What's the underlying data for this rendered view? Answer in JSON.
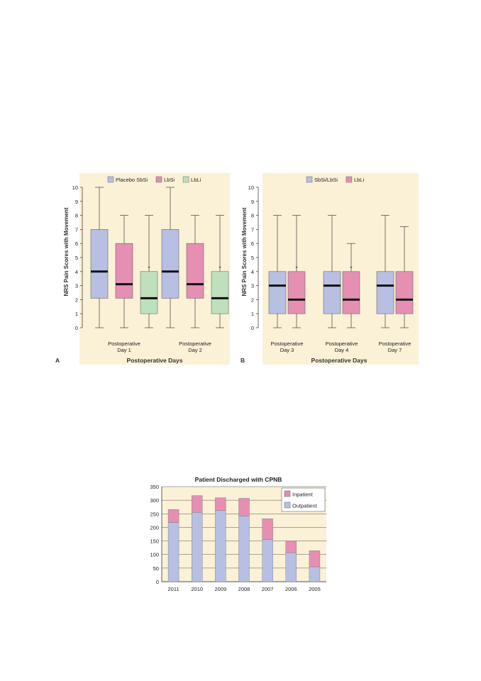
{
  "colors": {
    "panel_bg": "#fbf1d6",
    "placebo": "#b7bfe3",
    "lbsi": "#e58fb2",
    "lbli": "#bfe0bd",
    "outpatient": "#b7bfe3",
    "inpatient": "#e58fb2",
    "axis": "#444444",
    "whisker": "#555555",
    "median": "#111111"
  },
  "chart_data": [
    {
      "type": "box",
      "panel_letter": "A",
      "ylabel": "NRS Pain Scores with Movement",
      "xlabel": "Postoperative Days",
      "ylim": [
        0,
        10
      ],
      "yticks": [
        "0",
        "1",
        "2",
        "3",
        "4",
        "5",
        "6",
        "7",
        "8",
        "9",
        "10"
      ],
      "legend": [
        {
          "name": "Placebo SbSi",
          "color": "#b7bfe3"
        },
        {
          "name": "LbSi",
          "color": "#e58fb2"
        },
        {
          "name": "LbLi",
          "color": "#bfe0bd"
        }
      ],
      "legend_position": "top-center",
      "groups": [
        {
          "label_line1": "Postoperative",
          "label_line2": "Day 1",
          "boxes": [
            {
              "series": "Placebo SbSi",
              "min": 0,
              "q1": 2.1,
              "median": 4.0,
              "q3": 7.0,
              "max": 10,
              "asterisk": false
            },
            {
              "series": "LbSi",
              "min": 0,
              "q1": 2.1,
              "median": 3.1,
              "q3": 6.0,
              "max": 8,
              "asterisk": false
            },
            {
              "series": "LbLi",
              "min": 0,
              "q1": 1.0,
              "median": 2.1,
              "q3": 4.0,
              "max": 8,
              "asterisk": true
            }
          ]
        },
        {
          "label_line1": "Postoperative",
          "label_line2": "Day 2",
          "boxes": [
            {
              "series": "Placebo SbSi",
              "min": 0,
              "q1": 2.1,
              "median": 4.0,
              "q3": 7.0,
              "max": 10,
              "asterisk": false
            },
            {
              "series": "LbSi",
              "min": 0,
              "q1": 2.1,
              "median": 3.1,
              "q3": 6.0,
              "max": 8,
              "asterisk": false
            },
            {
              "series": "LbLi",
              "min": 0,
              "q1": 1.0,
              "median": 2.1,
              "q3": 4.0,
              "max": 8,
              "asterisk": true
            }
          ]
        }
      ],
      "asterisk_symbol": "*"
    },
    {
      "type": "box",
      "panel_letter": "B",
      "ylabel": "NRS Pain Scores with Movement",
      "xlabel": "Postoperative Days",
      "ylim": [
        0,
        10
      ],
      "yticks": [
        "0",
        "1",
        "2",
        "3",
        "4",
        "5",
        "6",
        "7",
        "8",
        "9",
        "10"
      ],
      "legend": [
        {
          "name": "SbSi/LbSi",
          "color": "#b7bfe3"
        },
        {
          "name": "LbLi",
          "color": "#e58fb2"
        }
      ],
      "legend_position": "top-right",
      "groups": [
        {
          "label_line1": "Postoperative",
          "label_line2": "Day 3",
          "boxes": [
            {
              "series": "SbSi/LbSi",
              "min": 0,
              "q1": 1.0,
              "median": 3.0,
              "q3": 4.0,
              "max": 8,
              "asterisk": false
            },
            {
              "series": "LbLi",
              "min": 0,
              "q1": 1.0,
              "median": 2.0,
              "q3": 4.0,
              "max": 8,
              "asterisk": true
            }
          ]
        },
        {
          "label_line1": "Postoperative",
          "label_line2": "Day 4",
          "boxes": [
            {
              "series": "SbSi/LbSi",
              "min": 0,
              "q1": 1.0,
              "median": 3.0,
              "q3": 4.0,
              "max": 8,
              "asterisk": false
            },
            {
              "series": "LbLi",
              "min": 0,
              "q1": 1.0,
              "median": 2.0,
              "q3": 4.0,
              "max": 6,
              "asterisk": true
            }
          ]
        },
        {
          "label_line1": "Postoperative",
          "label_line2": "Day 7",
          "boxes": [
            {
              "series": "SbSi/LbSi",
              "min": 0,
              "q1": 1.0,
              "median": 3.0,
              "q3": 4.0,
              "max": 8,
              "asterisk": false
            },
            {
              "series": "LbLi",
              "min": 0,
              "q1": 1.0,
              "median": 2.0,
              "q3": 4.0,
              "max": 7.2,
              "asterisk": false
            }
          ]
        }
      ],
      "asterisk_symbol": "*"
    },
    {
      "type": "bar",
      "stacked": true,
      "title": "Patient Discharged with CPNB",
      "categories": [
        "2011",
        "2010",
        "2009",
        "2008",
        "2007",
        "2006",
        "2005"
      ],
      "ylim": [
        0,
        350
      ],
      "yticks": [
        "0",
        "50",
        "100",
        "150",
        "200",
        "250",
        "300",
        "350"
      ],
      "grid": true,
      "legend_position": "top-right",
      "series": [
        {
          "name": "Outpatient",
          "color": "#b7bfe3",
          "values": [
            218,
            255,
            262,
            242,
            155,
            107,
            55
          ]
        },
        {
          "name": "Inpatient",
          "color": "#e58fb2",
          "values": [
            48,
            62,
            47,
            65,
            77,
            43,
            59
          ]
        }
      ],
      "legend_order": [
        "Inpatient",
        "Outpatient"
      ]
    }
  ]
}
